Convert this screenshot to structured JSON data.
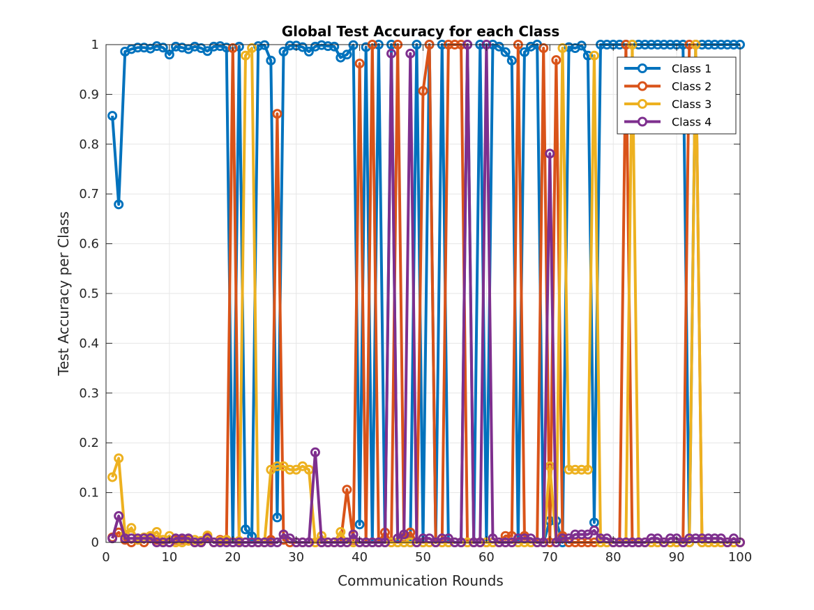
{
  "chart_data": {
    "type": "line",
    "title": "Global Test Accuracy for each Class",
    "xlabel": "Communication Rounds",
    "ylabel": "Test Accuracy per Class",
    "xlim": [
      0,
      100
    ],
    "ylim": [
      0,
      1
    ],
    "xticks": [
      0,
      10,
      20,
      30,
      40,
      50,
      60,
      70,
      80,
      90,
      100
    ],
    "xtick_labels": [
      "0",
      "10",
      "20",
      "30",
      "40",
      "50",
      "60",
      "70",
      "80",
      "90",
      "100"
    ],
    "yticks": [
      0,
      0.1,
      0.2,
      0.3,
      0.4,
      0.5,
      0.6,
      0.7,
      0.8,
      0.9,
      1
    ],
    "ytick_labels": [
      "0",
      "0.1",
      "0.2",
      "0.3",
      "0.4",
      "0.5",
      "0.6",
      "0.7",
      "0.8",
      "0.9",
      "1"
    ],
    "grid": true,
    "legend_position": "top-right",
    "x": [
      1,
      2,
      3,
      4,
      5,
      6,
      7,
      8,
      9,
      10,
      11,
      12,
      13,
      14,
      15,
      16,
      17,
      18,
      19,
      20,
      21,
      22,
      23,
      24,
      25,
      26,
      27,
      28,
      29,
      30,
      31,
      32,
      33,
      34,
      35,
      36,
      37,
      38,
      39,
      40,
      41,
      42,
      43,
      44,
      45,
      46,
      47,
      48,
      49,
      50,
      51,
      52,
      53,
      54,
      55,
      56,
      57,
      58,
      59,
      60,
      61,
      62,
      63,
      64,
      65,
      66,
      67,
      68,
      69,
      70,
      71,
      72,
      73,
      74,
      75,
      76,
      77,
      78,
      79,
      80,
      81,
      82,
      83,
      84,
      85,
      86,
      87,
      88,
      89,
      90,
      91,
      92,
      93,
      94,
      95,
      96,
      97,
      98,
      99,
      100
    ],
    "series": [
      {
        "name": "Class 1",
        "color": "#0072BD",
        "values": [
          0.857,
          0.679,
          0.986,
          0.991,
          0.994,
          0.994,
          0.992,
          0.997,
          0.994,
          0.98,
          0.996,
          0.994,
          0.991,
          0.996,
          0.993,
          0.987,
          0.996,
          0.997,
          0.994,
          0,
          0.996,
          0.026,
          0.012,
          0.997,
          0.999,
          0.968,
          0.05,
          0.986,
          0.998,
          0.998,
          0.995,
          0.986,
          0.996,
          0.999,
          0.997,
          0.996,
          0.974,
          0.98,
          0.999,
          0.036,
          0.995,
          0,
          1.0,
          0,
          1.0,
          0,
          0,
          0,
          1.0,
          0,
          1.0,
          0,
          1.0,
          0,
          0,
          0,
          1.0,
          0,
          1.0,
          0,
          1.0,
          0.996,
          0.985,
          0.968,
          0,
          0.985,
          0.996,
          1.0,
          0,
          0.043,
          0.043,
          0,
          0.995,
          0.993,
          0.998,
          0.978,
          0.04,
          1.0,
          1.0,
          1.0,
          1.0,
          1.0,
          1.0,
          1.0,
          1.0,
          1.0,
          1.0,
          1.0,
          1.0,
          1.0,
          1.0,
          0,
          1.0,
          1.0,
          1.0,
          1.0,
          1.0,
          1.0,
          1.0,
          1.0
        ]
      },
      {
        "name": "Class 2",
        "color": "#D95319",
        "values": [
          0.01,
          0.02,
          0.005,
          0,
          0.005,
          0,
          0.01,
          0.005,
          0.005,
          0,
          0.005,
          0.005,
          0.005,
          0,
          0,
          0.01,
          0,
          0.005,
          0.005,
          0.993,
          0,
          0,
          0,
          0,
          0,
          0.005,
          0.861,
          0.005,
          0,
          0,
          0,
          0,
          0,
          0,
          0,
          0,
          0,
          0.106,
          0.005,
          0.962,
          0,
          1.0,
          0,
          0.02,
          0,
          1.0,
          0.01,
          0.02,
          0,
          0.907,
          1.0,
          0,
          0,
          1.0,
          1.0,
          1.0,
          0,
          0,
          0,
          0,
          0,
          0,
          0.013,
          0.013,
          1.0,
          0.013,
          0,
          0,
          0.993,
          0,
          0.969,
          0.013,
          0,
          0,
          0,
          0,
          0,
          0,
          0,
          0,
          0,
          1.0,
          0,
          0,
          0,
          0,
          0,
          0,
          0,
          0,
          0,
          1.0,
          1.0,
          0,
          0,
          0,
          0,
          0,
          0,
          0
        ]
      },
      {
        "name": "Class 3",
        "color": "#EDB120",
        "values": [
          0.131,
          0.169,
          0.016,
          0.029,
          0.005,
          0.01,
          0.013,
          0.021,
          0.005,
          0.013,
          0,
          0,
          0.003,
          0.005,
          0.003,
          0.014,
          0,
          0.003,
          0.005,
          0,
          0.003,
          0.978,
          0.993,
          0,
          0,
          0.146,
          0.153,
          0.153,
          0.146,
          0.146,
          0.153,
          0.146,
          0,
          0.013,
          0,
          0,
          0.021,
          0,
          0,
          0,
          0,
          0,
          0,
          0,
          0,
          0,
          0,
          0,
          0,
          0,
          0,
          0,
          0,
          0,
          0,
          0,
          0,
          0,
          0,
          0,
          0,
          0,
          0,
          0,
          0,
          0,
          0,
          0,
          0,
          0.153,
          0,
          0.993,
          0.146,
          0.146,
          0.146,
          0.146,
          0.978,
          0,
          0,
          0,
          0,
          0,
          1.0,
          0,
          0,
          0,
          0,
          0,
          0,
          0,
          0,
          0,
          1.0,
          0,
          0,
          0,
          0,
          0,
          0,
          0
        ]
      },
      {
        "name": "Class 4",
        "color": "#7E2F8E",
        "values": [
          0.008,
          0.053,
          0.008,
          0.008,
          0.008,
          0.008,
          0.008,
          0,
          0,
          0,
          0.008,
          0.008,
          0.008,
          0,
          0,
          0.008,
          0,
          0,
          0,
          0,
          0,
          0,
          0,
          0,
          0,
          0,
          0,
          0.016,
          0.008,
          0,
          0,
          0,
          0.181,
          0,
          0,
          0,
          0,
          0,
          0.016,
          0,
          0,
          0,
          0,
          0,
          0.982,
          0.008,
          0.016,
          0.982,
          0,
          0.008,
          0.008,
          0,
          0.008,
          0.008,
          0,
          0,
          1.0,
          0,
          0,
          1.0,
          0.008,
          0,
          0,
          0,
          0.008,
          0.008,
          0.008,
          0,
          0,
          0.781,
          0,
          0.008,
          0.008,
          0.016,
          0.016,
          0.016,
          0.024,
          0.008,
          0.008,
          0,
          0,
          0,
          0,
          0,
          0,
          0.008,
          0.008,
          0,
          0.008,
          0.008,
          0,
          0.008,
          0.008,
          0.008,
          0.008,
          0.008,
          0.008,
          0,
          0.008,
          0
        ]
      }
    ]
  }
}
